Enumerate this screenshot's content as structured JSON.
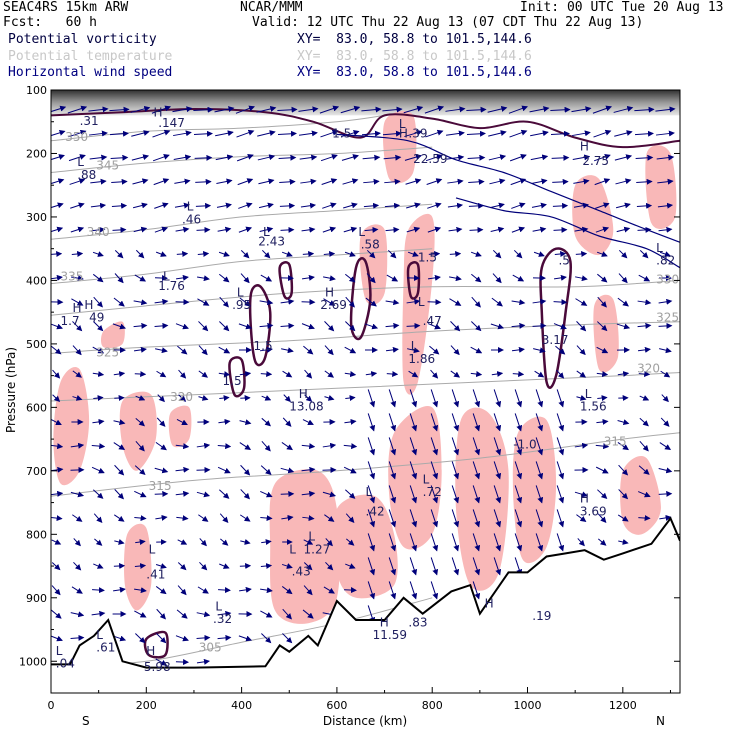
{
  "header": {
    "model": "SEAC4RS 15km ARW",
    "org": "NCAR/MMM",
    "init": "Init: 00 UTC Tue 20 Aug 13",
    "fcst": "Fcst:   60 h",
    "valid": "Valid: 12 UTC Thu 22 Aug 13 (07 CDT Thu 22 Aug 13)",
    "field1": "Potential vorticity",
    "field2": "Potential temperature",
    "field3": "Horizontal wind speed",
    "xy": "XY=  83.0, 58.8 to 101.5,144.6"
  },
  "colors": {
    "pv_fill": "#f9b8b8",
    "pv_contour": "#4a0a3a",
    "theta": "#aaaaaa",
    "wind": "#00007a",
    "terrain": "#000000"
  },
  "chart_data": {
    "type": "cross-section",
    "xlabel": "Distance (km)",
    "ylabel": "Pressure (hPa)",
    "xlim": [
      0,
      1320
    ],
    "ylim": [
      1050,
      100
    ],
    "xticks": [
      0,
      200,
      400,
      600,
      800,
      1000,
      1200
    ],
    "yticks": [
      100,
      200,
      300,
      400,
      500,
      600,
      700,
      800,
      900,
      1000
    ],
    "end_labels": {
      "left": "S",
      "right": "N"
    },
    "terrain": [
      [
        0,
        1005
      ],
      [
        40,
        1005
      ],
      [
        60,
        975
      ],
      [
        90,
        960
      ],
      [
        120,
        935
      ],
      [
        150,
        1000
      ],
      [
        200,
        1010
      ],
      [
        300,
        1010
      ],
      [
        450,
        1008
      ],
      [
        480,
        975
      ],
      [
        500,
        985
      ],
      [
        540,
        960
      ],
      [
        560,
        975
      ],
      [
        600,
        905
      ],
      [
        640,
        935
      ],
      [
        700,
        935
      ],
      [
        740,
        900
      ],
      [
        780,
        925
      ],
      [
        840,
        890
      ],
      [
        880,
        880
      ],
      [
        900,
        925
      ],
      [
        960,
        860
      ],
      [
        1000,
        860
      ],
      [
        1040,
        835
      ],
      [
        1080,
        830
      ],
      [
        1120,
        825
      ],
      [
        1160,
        840
      ],
      [
        1200,
        830
      ],
      [
        1260,
        815
      ],
      [
        1300,
        775
      ],
      [
        1320,
        810
      ]
    ],
    "theta_contours": [
      {
        "label": "350",
        "points": [
          [
            0,
            180
          ],
          [
            200,
            165
          ],
          [
            400,
            160
          ],
          [
            600,
            150
          ],
          [
            700,
            140
          ]
        ]
      },
      {
        "label": "345",
        "points": [
          [
            0,
            230
          ],
          [
            200,
            215
          ],
          [
            400,
            205
          ],
          [
            600,
            200
          ],
          [
            800,
            190
          ]
        ]
      },
      {
        "label": "340",
        "points": [
          [
            0,
            335
          ],
          [
            200,
            320
          ],
          [
            400,
            300
          ],
          [
            600,
            290
          ],
          [
            800,
            280
          ]
        ]
      },
      {
        "label": "335",
        "points": [
          [
            0,
            405
          ],
          [
            200,
            390
          ],
          [
            400,
            370
          ],
          [
            600,
            360
          ],
          [
            800,
            350
          ]
        ]
      },
      {
        "label": "330",
        "points": [
          [
            0,
            455
          ],
          [
            200,
            440
          ],
          [
            500,
            420
          ],
          [
            800,
            410
          ],
          [
            1100,
            410
          ],
          [
            1320,
            400
          ]
        ]
      },
      {
        "label": "325",
        "points": [
          [
            0,
            515
          ],
          [
            200,
            505
          ],
          [
            500,
            495
          ],
          [
            800,
            480
          ],
          [
            1100,
            470
          ],
          [
            1320,
            465
          ]
        ]
      },
      {
        "label": "320",
        "points": [
          [
            0,
            590
          ],
          [
            300,
            580
          ],
          [
            600,
            570
          ],
          [
            900,
            560
          ],
          [
            1200,
            550
          ],
          [
            1320,
            545
          ]
        ]
      },
      {
        "label": "315",
        "points": [
          [
            0,
            740
          ],
          [
            300,
            715
          ],
          [
            600,
            700
          ],
          [
            900,
            680
          ],
          [
            1200,
            650
          ],
          [
            1320,
            640
          ]
        ]
      },
      {
        "label": "305",
        "points": [
          [
            0,
            1010
          ],
          [
            200,
            1000
          ],
          [
            400,
            970
          ],
          [
            600,
            940
          ],
          [
            800,
            900
          ]
        ]
      }
    ],
    "pv_fill_regions": [
      [
        [
          20,
          560
        ],
        [
          60,
          540
        ],
        [
          80,
          620
        ],
        [
          60,
          700
        ],
        [
          20,
          720
        ],
        [
          5,
          650
        ]
      ],
      [
        [
          150,
          590
        ],
        [
          210,
          580
        ],
        [
          220,
          650
        ],
        [
          180,
          700
        ],
        [
          150,
          660
        ]
      ],
      [
        [
          110,
          480
        ],
        [
          150,
          465
        ],
        [
          150,
          500
        ],
        [
          110,
          505
        ]
      ],
      [
        [
          250,
          610
        ],
        [
          290,
          600
        ],
        [
          290,
          650
        ],
        [
          255,
          660
        ]
      ],
      [
        [
          160,
          800
        ],
        [
          200,
          790
        ],
        [
          210,
          880
        ],
        [
          180,
          920
        ],
        [
          155,
          880
        ]
      ],
      [
        [
          470,
          720
        ],
        [
          560,
          700
        ],
        [
          600,
          760
        ],
        [
          600,
          900
        ],
        [
          540,
          940
        ],
        [
          470,
          920
        ],
        [
          460,
          820
        ]
      ],
      [
        [
          600,
          760
        ],
        [
          680,
          740
        ],
        [
          720,
          800
        ],
        [
          720,
          880
        ],
        [
          640,
          900
        ],
        [
          600,
          860
        ]
      ],
      [
        [
          720,
          640
        ],
        [
          800,
          600
        ],
        [
          820,
          700
        ],
        [
          800,
          800
        ],
        [
          740,
          820
        ],
        [
          710,
          740
        ]
      ],
      [
        [
          860,
          620
        ],
        [
          920,
          610
        ],
        [
          960,
          700
        ],
        [
          940,
          860
        ],
        [
          880,
          880
        ],
        [
          850,
          760
        ]
      ],
      [
        [
          980,
          640
        ],
        [
          1040,
          620
        ],
        [
          1060,
          720
        ],
        [
          1040,
          820
        ],
        [
          990,
          840
        ],
        [
          970,
          740
        ]
      ],
      [
        [
          1200,
          700
        ],
        [
          1250,
          680
        ],
        [
          1280,
          760
        ],
        [
          1240,
          800
        ],
        [
          1200,
          780
        ]
      ],
      [
        [
          750,
          320
        ],
        [
          800,
          300
        ],
        [
          800,
          400
        ],
        [
          770,
          560
        ],
        [
          740,
          560
        ],
        [
          740,
          400
        ]
      ],
      [
        [
          650,
          330
        ],
        [
          700,
          320
        ],
        [
          700,
          420
        ],
        [
          660,
          430
        ]
      ],
      [
        [
          1100,
          250
        ],
        [
          1150,
          240
        ],
        [
          1180,
          320
        ],
        [
          1150,
          360
        ],
        [
          1100,
          330
        ]
      ],
      [
        [
          1250,
          200
        ],
        [
          1300,
          200
        ],
        [
          1310,
          300
        ],
        [
          1260,
          310
        ]
      ],
      [
        [
          700,
          150
        ],
        [
          760,
          140
        ],
        [
          760,
          230
        ],
        [
          710,
          240
        ]
      ],
      [
        [
          1140,
          440
        ],
        [
          1180,
          430
        ],
        [
          1190,
          520
        ],
        [
          1150,
          540
        ]
      ]
    ],
    "pv_contours": [
      [
        [
          420,
          420
        ],
        [
          440,
          410
        ],
        [
          460,
          450
        ],
        [
          450,
          520
        ],
        [
          430,
          530
        ],
        [
          420,
          480
        ]
      ],
      [
        [
          480,
          380
        ],
        [
          500,
          375
        ],
        [
          505,
          420
        ],
        [
          490,
          425
        ]
      ],
      [
        [
          640,
          380
        ],
        [
          660,
          370
        ],
        [
          670,
          430
        ],
        [
          650,
          490
        ],
        [
          630,
          470
        ]
      ],
      [
        [
          750,
          380
        ],
        [
          770,
          375
        ],
        [
          770,
          420
        ],
        [
          755,
          425
        ]
      ],
      [
        [
          1030,
          380
        ],
        [
          1060,
          350
        ],
        [
          1090,
          370
        ],
        [
          1080,
          450
        ],
        [
          1060,
          550
        ],
        [
          1040,
          560
        ],
        [
          1030,
          450
        ]
      ],
      [
        [
          375,
          530
        ],
        [
          400,
          525
        ],
        [
          405,
          570
        ],
        [
          385,
          580
        ]
      ],
      [
        [
          200,
          965
        ],
        [
          240,
          955
        ],
        [
          240,
          990
        ],
        [
          205,
          990
        ]
      ]
    ],
    "annotations": [
      {
        "t": "H",
        "x": 215,
        "y": 142
      },
      {
        "t": ".147",
        "x": 225,
        "y": 158
      },
      {
        "t": ".31",
        "x": 60,
        "y": 155
      },
      {
        "t": "L",
        "x": 55,
        "y": 220
      },
      {
        "t": ".88",
        "x": 55,
        "y": 240
      },
      {
        "t": "L",
        "x": 285,
        "y": 290
      },
      {
        "t": ".46",
        "x": 275,
        "y": 310
      },
      {
        "t": "L",
        "x": 445,
        "y": 330
      },
      {
        "t": "2.43",
        "x": 435,
        "y": 345
      },
      {
        "t": "L",
        "x": 645,
        "y": 330
      },
      {
        "t": ".58",
        "x": 650,
        "y": 350
      },
      {
        "t": "L",
        "x": 235,
        "y": 400
      },
      {
        "t": "1.76",
        "x": 225,
        "y": 415
      },
      {
        "t": "H",
        "x": 45,
        "y": 450
      },
      {
        "t": "1.7",
        "x": 20,
        "y": 470
      },
      {
        "t": "H",
        "x": 70,
        "y": 445
      },
      {
        "t": "49",
        "x": 80,
        "y": 465
      },
      {
        "t": "L",
        "x": 390,
        "y": 425
      },
      {
        "t": ".95",
        "x": 380,
        "y": 445
      },
      {
        "t": "H",
        "x": 575,
        "y": 425
      },
      {
        "t": "2.69",
        "x": 565,
        "y": 445
      },
      {
        "t": "1.5",
        "x": 425,
        "y": 510
      },
      {
        "t": "1.5",
        "x": 360,
        "y": 565
      },
      {
        "t": "L",
        "x": 770,
        "y": 440
      },
      {
        "t": ".47",
        "x": 780,
        "y": 470
      },
      {
        "t": "L",
        "x": 755,
        "y": 510
      },
      {
        "t": "1.86",
        "x": 750,
        "y": 530
      },
      {
        "t": "1.5",
        "x": 770,
        "y": 370
      },
      {
        "t": "3.17",
        "x": 1030,
        "y": 500
      },
      {
        "t": "H",
        "x": 520,
        "y": 585
      },
      {
        "t": "13.08",
        "x": 500,
        "y": 605
      },
      {
        "t": "L",
        "x": 1120,
        "y": 585
      },
      {
        "t": "1.56",
        "x": 1110,
        "y": 605
      },
      {
        "t": "-1.0",
        "x": 970,
        "y": 665
      },
      {
        "t": "L",
        "x": 780,
        "y": 720
      },
      {
        "t": ".72",
        "x": 780,
        "y": 740
      },
      {
        "t": "L",
        "x": 660,
        "y": 740
      },
      {
        "t": ".42",
        "x": 660,
        "y": 770
      },
      {
        "t": "H",
        "x": 1110,
        "y": 750
      },
      {
        "t": "3.69",
        "x": 1110,
        "y": 770
      },
      {
        "t": "L",
        "x": 540,
        "y": 810
      },
      {
        "t": "1.27",
        "x": 530,
        "y": 830
      },
      {
        "t": "L",
        "x": 500,
        "y": 830
      },
      {
        "t": ".43",
        "x": 505,
        "y": 865
      },
      {
        "t": "L",
        "x": 205,
        "y": 830
      },
      {
        "t": ".41",
        "x": 200,
        "y": 870
      },
      {
        "t": "L",
        "x": 345,
        "y": 920
      },
      {
        "t": ".32",
        "x": 340,
        "y": 940
      },
      {
        "t": "H",
        "x": 690,
        "y": 945
      },
      {
        "t": "11.59",
        "x": 675,
        "y": 965
      },
      {
        "t": ".83",
        "x": 750,
        "y": 945
      },
      {
        "t": "H",
        "x": 910,
        "y": 915
      },
      {
        "t": ".19",
        "x": 1010,
        "y": 935
      },
      {
        "t": "L",
        "x": 95,
        "y": 965
      },
      {
        "t": ".61",
        "x": 95,
        "y": 985
      },
      {
        "t": "L",
        "x": 10,
        "y": 990
      },
      {
        "t": ".04",
        "x": 10,
        "y": 1010
      },
      {
        "t": "H",
        "x": 200,
        "y": 990
      },
      {
        "t": "5.98",
        "x": 195,
        "y": 1015
      },
      {
        "t": "H",
        "x": 1110,
        "y": 195
      },
      {
        "t": "2.75",
        "x": 1115,
        "y": 218
      },
      {
        "t": "H",
        "x": 730,
        "y": 175
      },
      {
        "t": "22.59",
        "x": 760,
        "y": 215
      },
      {
        "t": "L",
        "x": 1270,
        "y": 355
      },
      {
        "t": ".82",
        "x": 1270,
        "y": 375
      },
      {
        "t": "1.5",
        "x": 590,
        "y": 175
      },
      {
        "t": ".5",
        "x": 1065,
        "y": 375
      },
      {
        "t": ".39",
        "x": 750,
        "y": 175
      },
      {
        "t": "L",
        "x": 730,
        "y": 160
      }
    ],
    "theta_labels": [
      {
        "t": "350",
        "x": 30,
        "y": 180
      },
      {
        "t": "345",
        "x": 95,
        "y": 225
      },
      {
        "t": "340",
        "x": 75,
        "y": 330
      },
      {
        "t": "335",
        "x": 20,
        "y": 400
      },
      {
        "t": "330",
        "x": 1270,
        "y": 405
      },
      {
        "t": "325",
        "x": 95,
        "y": 520
      },
      {
        "t": "325",
        "x": 1270,
        "y": 465
      },
      {
        "t": "320",
        "x": 1230,
        "y": 545
      },
      {
        "t": "320",
        "x": 250,
        "y": 590
      },
      {
        "t": "315",
        "x": 205,
        "y": 730
      },
      {
        "t": "315",
        "x": 1160,
        "y": 660
      },
      {
        "t": "305",
        "x": 310,
        "y": 985
      }
    ],
    "jet_layer": {
      "top": 100,
      "bottom": 140
    }
  }
}
